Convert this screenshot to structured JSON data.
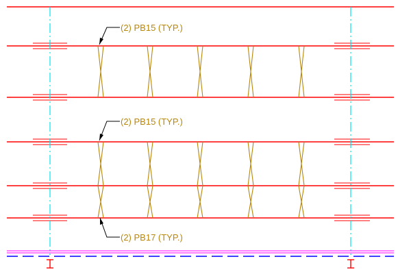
{
  "drawing": {
    "colors": {
      "beam": "#ff0000",
      "gridline": "#00e5ee",
      "bracing": "#b8860b",
      "callout": "#b8860b",
      "leader": "#000000",
      "slab_edge": "#ff00ff",
      "dashed": "#0000ff",
      "grid_mark": "#ff0000"
    },
    "callouts": [
      {
        "text": "(2) PB15 (TYP.)"
      },
      {
        "text": "(2) PB15 (TYP.)"
      },
      {
        "text": "(2) PB17 (TYP.)"
      }
    ],
    "grid_marks": [
      {
        "label": "I"
      },
      {
        "label": "I"
      }
    ]
  }
}
